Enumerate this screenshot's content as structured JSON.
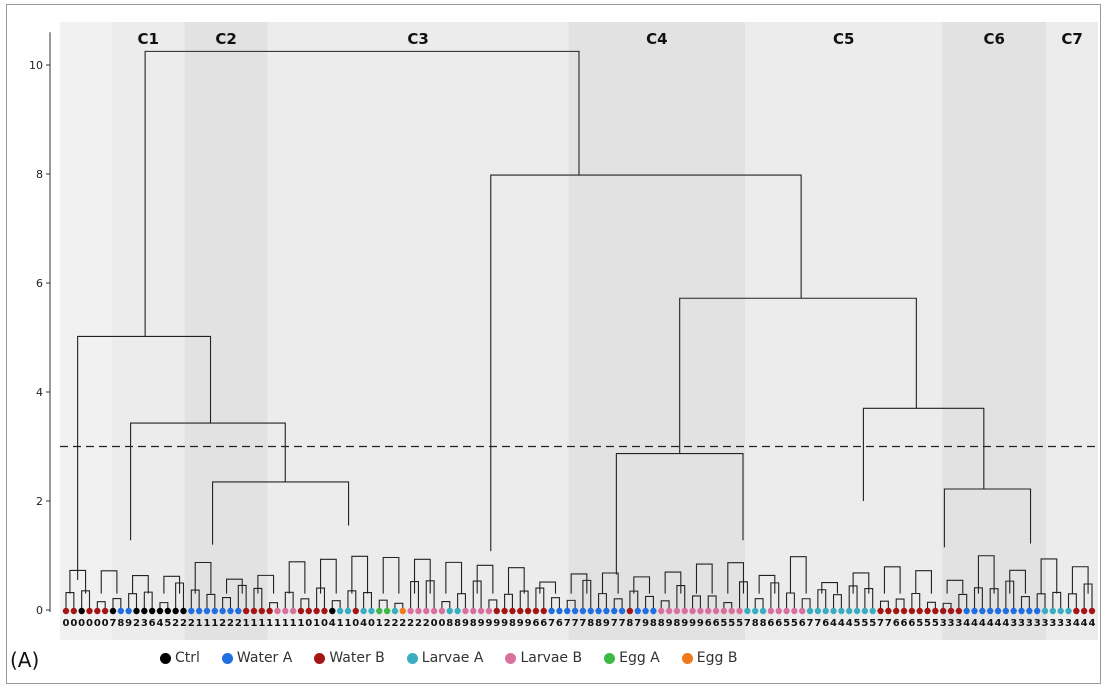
{
  "chart_data": {
    "type": "dendrogram",
    "panel_label": "(A)",
    "yticks": [
      0,
      2,
      4,
      6,
      8,
      10
    ],
    "ylim": [
      0,
      10.6
    ],
    "cut_height": 3.0,
    "clusters": [
      {
        "label": "C1",
        "range": [
          0.05,
          0.12
        ],
        "shade": "#ececec"
      },
      {
        "label": "C2",
        "range": [
          0.12,
          0.2
        ],
        "shade": "#e2e2e2"
      },
      {
        "label": "C3",
        "range": [
          0.2,
          0.49
        ],
        "shade": "#ececec"
      },
      {
        "label": "C4",
        "range": [
          0.49,
          0.66
        ],
        "shade": "#e2e2e2"
      },
      {
        "label": "C5",
        "range": [
          0.66,
          0.85
        ],
        "shade": "#ececec"
      },
      {
        "label": "C6",
        "range": [
          0.85,
          0.95
        ],
        "shade": "#e2e2e2"
      },
      {
        "label": "C7",
        "range": [
          0.95,
          1.0
        ],
        "shade": "#ececec"
      }
    ],
    "top_merges": [
      {
        "height": 10.25,
        "left": 0.12,
        "right": 0.71
      },
      {
        "height": 7.98,
        "left": 0.49,
        "right": 0.87
      },
      {
        "height": 5.72,
        "left": 0.72,
        "right": 1.0
      },
      {
        "height": 5.02,
        "left": 0.05,
        "right": 0.17
      },
      {
        "height": 3.43,
        "left": 0.1,
        "right": 0.26
      },
      {
        "height": 3.7,
        "left": 0.91,
        "right": 0.98
      },
      {
        "height": 2.87,
        "left": 0.65,
        "right": 0.78
      },
      {
        "height": 2.35,
        "left": 0.18,
        "right": 0.35
      },
      {
        "height": 2.22,
        "left": 0.95,
        "right": 1.0
      },
      {
        "height": 2.0,
        "left": 0.86,
        "right": 0.92
      },
      {
        "height": 1.28,
        "left": 0.09,
        "right": 0.15
      },
      {
        "height": 1.08,
        "left": 0.5,
        "right": 0.57
      }
    ],
    "leaf_labels": "000000789236452221112221111111101041104012222220088989999899667677788977879889899966555788665567764445557766655533344444433333333444",
    "legend": [
      {
        "name": "Ctrl",
        "color": "#000000"
      },
      {
        "name": "Water A",
        "color": "#1f6fe0"
      },
      {
        "name": "Water B",
        "color": "#a51515"
      },
      {
        "name": "Larvae A",
        "color": "#3aaec0"
      },
      {
        "name": "Larvae B",
        "color": "#d9719e"
      },
      {
        "name": "Egg A",
        "color": "#3cba45"
      },
      {
        "name": "Egg B",
        "color": "#f07a1a"
      }
    ],
    "leaf_groups": [
      {
        "color": "#a51515",
        "count": 2
      },
      {
        "color": "#000000",
        "count": 1
      },
      {
        "color": "#a51515",
        "count": 3
      },
      {
        "color": "#000000",
        "count": 1
      },
      {
        "color": "#1f6fe0",
        "count": 2
      },
      {
        "color": "#000000",
        "count": 7
      },
      {
        "color": "#1f6fe0",
        "count": 7
      },
      {
        "color": "#a51515",
        "count": 4
      },
      {
        "color": "#d9719e",
        "count": 3
      },
      {
        "color": "#a51515",
        "count": 4
      },
      {
        "color": "#000000",
        "count": 1
      },
      {
        "color": "#3aaec0",
        "count": 2
      },
      {
        "color": "#a51515",
        "count": 1
      },
      {
        "color": "#3aaec0",
        "count": 2
      },
      {
        "color": "#3cba45",
        "count": 2
      },
      {
        "color": "#3aaec0",
        "count": 1
      },
      {
        "color": "#f07a1a",
        "count": 1
      },
      {
        "color": "#d9719e",
        "count": 5
      },
      {
        "color": "#3aaec0",
        "count": 2
      },
      {
        "color": "#d9719e",
        "count": 4
      },
      {
        "color": "#a51515",
        "count": 7
      },
      {
        "color": "#1f6fe0",
        "count": 10
      },
      {
        "color": "#a51515",
        "count": 1
      },
      {
        "color": "#1f6fe0",
        "count": 3
      },
      {
        "color": "#d9719e",
        "count": 11
      },
      {
        "color": "#3aaec0",
        "count": 3
      },
      {
        "color": "#d9719e",
        "count": 5
      },
      {
        "color": "#3aaec0",
        "count": 9
      },
      {
        "color": "#a51515",
        "count": 11
      },
      {
        "color": "#1f6fe0",
        "count": 10
      },
      {
        "color": "#3aaec0",
        "count": 4
      },
      {
        "color": "#a51515",
        "count": 3
      },
      {
        "color": "#d9719e",
        "count": 7
      }
    ]
  }
}
